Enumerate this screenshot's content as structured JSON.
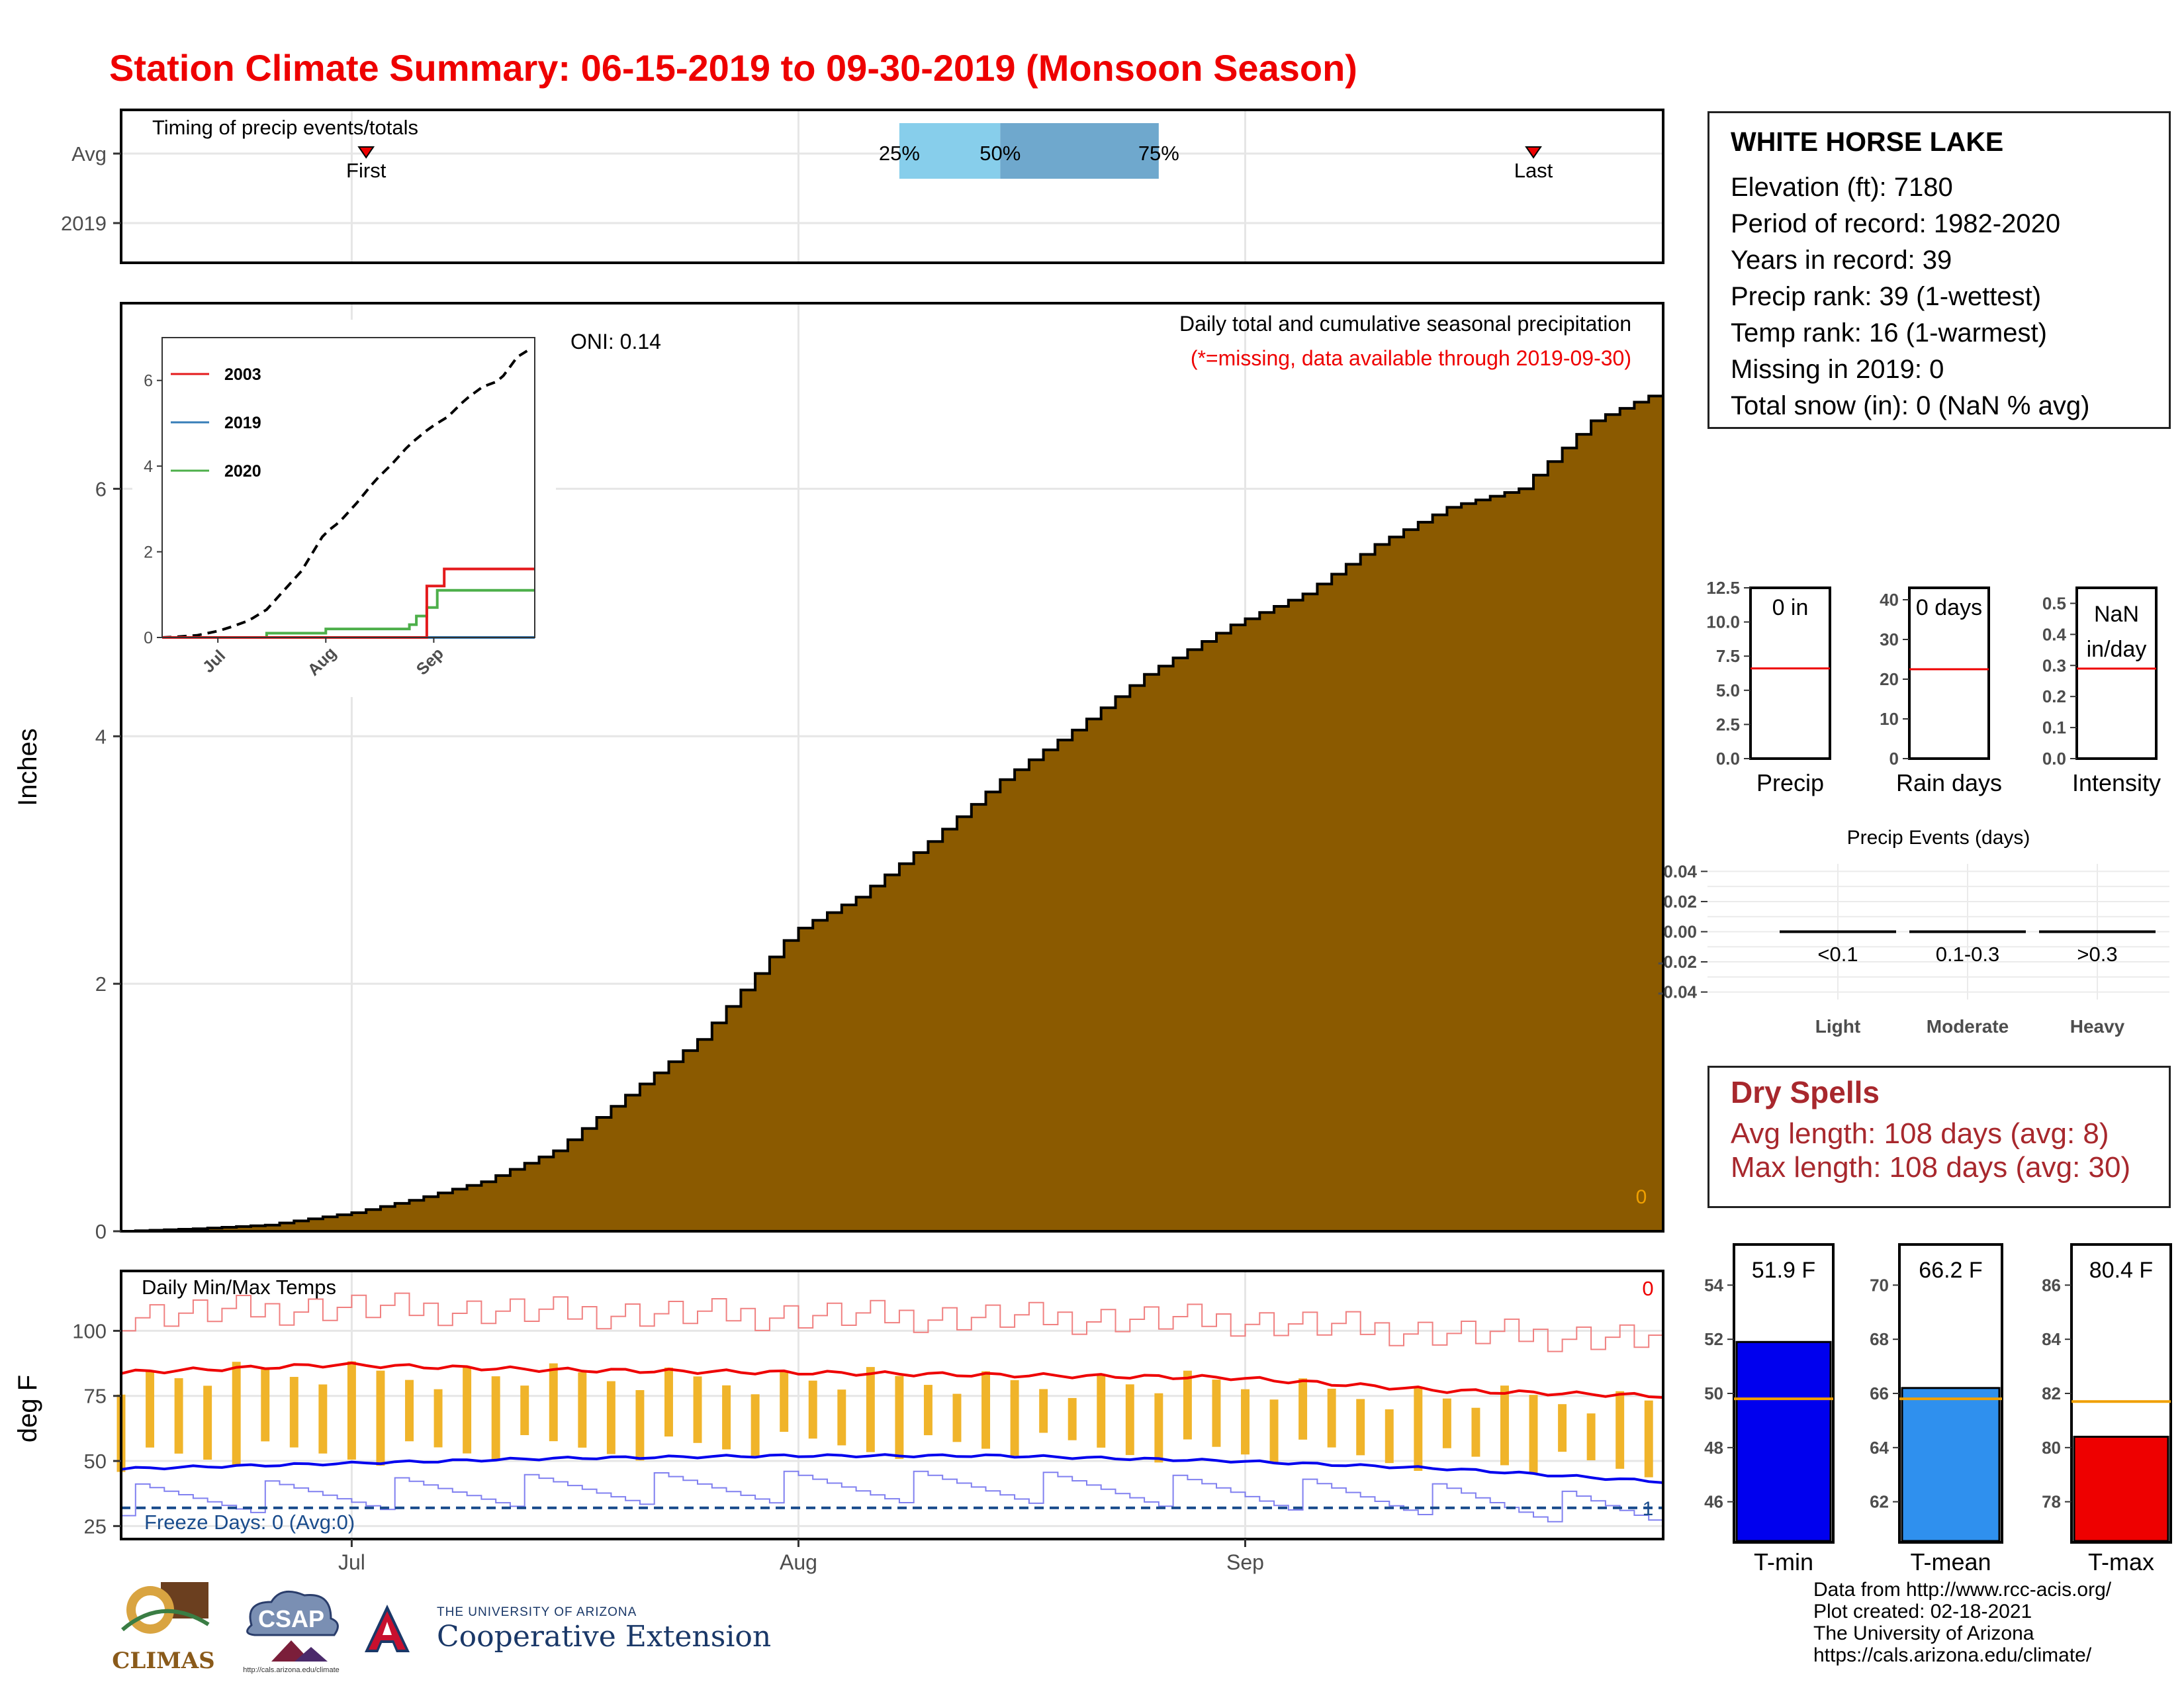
{
  "title": "Station Climate Summary: 06-15-2019 to 09-30-2019 (Monsoon Season)",
  "station": {
    "name": "WHITE HORSE LAKE",
    "lines": [
      "Elevation (ft): 7180",
      "Period of record: 1982-2020",
      "Years in record: 39",
      "Precip rank: 39 (1-wettest)",
      "Temp rank: 16 (1-warmest)",
      "Missing in 2019: 0",
      "Total snow (in): 0 (NaN % avg)"
    ]
  },
  "dry_spells": {
    "title": "Dry Spells",
    "avg_line": "Avg length: 108 days (avg: 8)",
    "max_line": "Max length: 108 days (avg: 30)"
  },
  "source": {
    "line1": "Data from http://www.rcc-acis.org/",
    "line2": "Plot created: 02-18-2021",
    "line3": "The University of Arizona",
    "line4": "https://cals.arizona.edu/climate/"
  },
  "logos": {
    "climas": "CLIMAS",
    "csap": "CSAP",
    "csap_url": "http://cals.arizona.edu/climate",
    "ua_small": "THE UNIVERSITY OF ARIZONA",
    "ua_big": "Cooperative Extension"
  },
  "colors": {
    "title_red": "#ee0000",
    "precip_fill": "#8b5a00",
    "tmin_blue": "#0000ee",
    "tmean_blue": "#2f90ee",
    "tmax_red": "#ee0000",
    "range_bar": "#f0b42a",
    "quartile_light": "#87ceeb",
    "quartile_dark": "#6fa8cd",
    "dry_text": "#a8282d"
  },
  "chart_data": [
    {
      "id": "timing",
      "type": "bar",
      "title": "Timing of precip events/totals",
      "y_categories": [
        "Avg",
        "2019"
      ],
      "x_range": [
        "06-15",
        "09-30"
      ],
      "x_ticks": [
        "Jul",
        "Aug",
        "Sep"
      ],
      "avg_quartiles": {
        "25%": "08-08",
        "50%": "08-15",
        "75%": "08-26"
      },
      "avg_first": "07-02",
      "avg_last": "09-21",
      "labels": {
        "q25": "25%",
        "q50": "50%",
        "q75": "75%",
        "first": "First",
        "last": "Last"
      }
    },
    {
      "id": "cumulative-precip",
      "type": "area",
      "title": "Daily total and cumulative seasonal precipitation",
      "subtitle": "(*=missing, data available through 2019-09-30)",
      "annotation": "ONI: 0.14",
      "corner_value": "0",
      "ylabel": "Inches",
      "ylim": [
        0,
        7.5
      ],
      "y_ticks": [
        0,
        2,
        4,
        6
      ],
      "x_ticks": [
        "Jul",
        "Aug",
        "Sep"
      ],
      "x_range": [
        "06-15",
        "09-30"
      ],
      "series": [
        {
          "name": "Avg cumulative",
          "x": [
            "06-15",
            "06-20",
            "06-25",
            "07-01",
            "07-05",
            "07-10",
            "07-15",
            "07-20",
            "07-25",
            "07-31",
            "08-01",
            "08-05",
            "08-10",
            "08-15",
            "08-20",
            "08-25",
            "08-31",
            "09-05",
            "09-10",
            "09-15",
            "09-20",
            "09-25",
            "09-30"
          ],
          "values": [
            0.0,
            0.02,
            0.05,
            0.15,
            0.25,
            0.4,
            0.65,
            1.1,
            1.55,
            2.35,
            2.45,
            2.7,
            3.15,
            3.65,
            4.05,
            4.5,
            4.9,
            5.15,
            5.55,
            5.85,
            6.0,
            6.55,
            6.8
          ]
        },
        {
          "name": "2019",
          "values": [
            0
          ]
        }
      ]
    },
    {
      "id": "inset",
      "type": "line",
      "ylim": [
        0,
        7
      ],
      "y_ticks": [
        0,
        2,
        4,
        6
      ],
      "x_ticks": [
        "Jul",
        "Aug",
        "Sep"
      ],
      "series": [
        {
          "name": "2003",
          "color": "#e41a1c",
          "x": [
            "06-15",
            "08-29",
            "08-30",
            "09-02",
            "09-04",
            "09-30"
          ],
          "values": [
            0,
            0,
            1.2,
            1.2,
            1.6,
            1.6
          ]
        },
        {
          "name": "2019",
          "color": "#377eb8",
          "x": [
            "06-15",
            "09-30"
          ],
          "values": [
            0,
            0
          ]
        },
        {
          "name": "2020",
          "color": "#4daf4a",
          "x": [
            "06-15",
            "07-01",
            "07-15",
            "08-01",
            "08-15",
            "08-25",
            "08-27",
            "08-30",
            "09-02",
            "09-30"
          ],
          "values": [
            0,
            0,
            0.1,
            0.2,
            0.2,
            0.3,
            0.5,
            0.7,
            1.1,
            1.1
          ]
        },
        {
          "name": "Avg",
          "x": [
            "06-15",
            "06-20",
            "06-25",
            "07-01",
            "07-05",
            "07-10",
            "07-15",
            "07-20",
            "07-25",
            "07-31",
            "08-01",
            "08-05",
            "08-10",
            "08-15",
            "08-20",
            "08-25",
            "08-31",
            "09-05",
            "09-10",
            "09-15",
            "09-20",
            "09-25",
            "09-30"
          ],
          "values": [
            0.0,
            0.02,
            0.05,
            0.15,
            0.25,
            0.4,
            0.65,
            1.1,
            1.55,
            2.35,
            2.45,
            2.7,
            3.15,
            3.65,
            4.05,
            4.5,
            4.9,
            5.15,
            5.55,
            5.85,
            6.0,
            6.55,
            6.8
          ]
        }
      ]
    },
    {
      "id": "gauges",
      "type": "bar",
      "panels": [
        {
          "label": "Precip",
          "value_text": "0 in",
          "value_text2": "",
          "ylim": [
            0,
            12.5
          ],
          "y_ticks": [
            "0.0",
            "2.5",
            "5.0",
            "7.5",
            "10.0",
            "12.5"
          ],
          "avg": 6.6,
          "value": 0
        },
        {
          "label": "Rain days",
          "value_text": "0 days",
          "value_text2": "",
          "ylim": [
            0,
            43
          ],
          "y_ticks": [
            "0",
            "10",
            "20",
            "30",
            "40"
          ],
          "avg": 22.5,
          "value": 0
        },
        {
          "label": "Intensity",
          "value_text": "NaN",
          "value_text2": "in/day",
          "ylim": [
            0,
            0.55
          ],
          "y_ticks": [
            "0.0",
            "0.1",
            "0.2",
            "0.3",
            "0.4",
            "0.5"
          ],
          "avg": 0.29,
          "value": null
        }
      ]
    },
    {
      "id": "precip-events",
      "type": "bar",
      "title": "Precip Events (days)",
      "ylim": [
        -0.045,
        0.045
      ],
      "y_ticks": [
        "0.04",
        "0.02",
        "0.00",
        "-0.02",
        "-0.04"
      ],
      "categories": [
        "Light",
        "Moderate",
        "Heavy"
      ],
      "sublabels": [
        "<0.1",
        "0.1-0.3",
        ">0.3"
      ],
      "values": [
        0,
        0,
        0
      ]
    },
    {
      "id": "daily-temps",
      "type": "line",
      "title": "Daily Min/Max Temps",
      "ylabel": "deg F",
      "corner_value": "0",
      "freeze_text": "Freeze Days: 0 (Avg:0)",
      "ylim": [
        20,
        123
      ],
      "y_ticks": [
        25,
        50,
        75,
        100
      ],
      "x_ticks": [
        "Jul",
        "Aug",
        "Sep"
      ],
      "series": [
        {
          "name": "Avg max",
          "x": [
            "06-15",
            "06-30",
            "07-15",
            "07-31",
            "08-15",
            "08-31",
            "09-15",
            "09-30"
          ],
          "values": [
            84,
            87,
            85,
            84,
            83,
            82,
            77,
            75
          ]
        },
        {
          "name": "Avg min",
          "x": [
            "06-15",
            "06-30",
            "07-15",
            "07-31",
            "08-15",
            "08-31",
            "09-15",
            "09-30"
          ],
          "values": [
            47,
            49,
            51,
            52,
            52,
            50,
            47,
            42
          ]
        },
        {
          "name": "Freeze line",
          "values": [
            32
          ]
        }
      ]
    },
    {
      "id": "temp-gauges",
      "type": "bar",
      "panels": [
        {
          "label": "T-min",
          "value_text": "51.9 F",
          "value": 51.9,
          "avg": 49.8,
          "ylim": [
            44.5,
            55.5
          ],
          "y_ticks": [
            "46",
            "48",
            "50",
            "52",
            "54"
          ],
          "color": "#0000ee"
        },
        {
          "label": "T-mean",
          "value_text": "66.2 F",
          "value": 66.2,
          "avg": 65.8,
          "ylim": [
            60.5,
            71.5
          ],
          "y_ticks": [
            "62",
            "64",
            "66",
            "68",
            "70"
          ],
          "color": "#2f90ee"
        },
        {
          "label": "T-max",
          "value_text": "80.4 F",
          "value": 80.4,
          "avg": 81.7,
          "ylim": [
            76.5,
            87.5
          ],
          "y_ticks": [
            "78",
            "80",
            "82",
            "84",
            "86"
          ],
          "color": "#ee0000"
        }
      ]
    }
  ]
}
